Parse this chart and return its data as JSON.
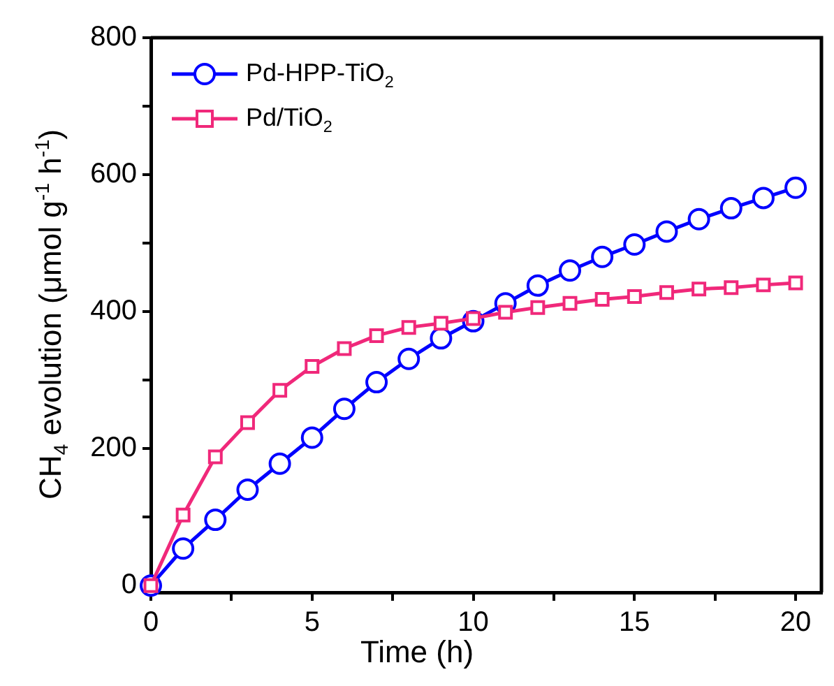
{
  "chart_data": {
    "type": "line",
    "xlabel": "Time (h)",
    "ylabel": "CH$_{4}$ evolution (μmol g$^{-1}$ h$^{-1}$)",
    "x": [
      0,
      1,
      2,
      3,
      4,
      5,
      6,
      7,
      8,
      9,
      10,
      11,
      12,
      13,
      14,
      15,
      16,
      17,
      18,
      19,
      20
    ],
    "series": [
      {
        "name": "Pd-HPP-TiO$_{2}$",
        "color": "#0000ff",
        "marker": "circle",
        "values": [
          0,
          54,
          96,
          140,
          178,
          216,
          258,
          297,
          331,
          361,
          386,
          412,
          438,
          460,
          480,
          498,
          517,
          535,
          551,
          566,
          581
        ]
      },
      {
        "name": "Pd/TiO$_{2}$",
        "color": "#f0287a",
        "marker": "square",
        "values": [
          0,
          103,
          188,
          238,
          285,
          320,
          346,
          365,
          377,
          383,
          390,
          399,
          406,
          412,
          418,
          422,
          428,
          433,
          435,
          439,
          442
        ]
      }
    ],
    "xlim": [
      0,
      20.8
    ],
    "xticks": [
      0,
      {
        "value": 2.5,
        "label": null
      },
      5,
      {
        "value": 7.5,
        "label": null
      },
      10,
      {
        "value": 12.5,
        "label": null
      },
      15,
      {
        "value": 17.5,
        "label": null
      },
      20
    ],
    "ylim": [
      -10,
      800
    ],
    "yticks": [
      0,
      {
        "value": 100,
        "label": null
      },
      200,
      {
        "value": 300,
        "label": null
      },
      400,
      {
        "value": 500,
        "label": null
      },
      600,
      {
        "value": 700,
        "label": null
      },
      800
    ],
    "grid": false,
    "legend": "top left",
    "line_style": "solid"
  }
}
